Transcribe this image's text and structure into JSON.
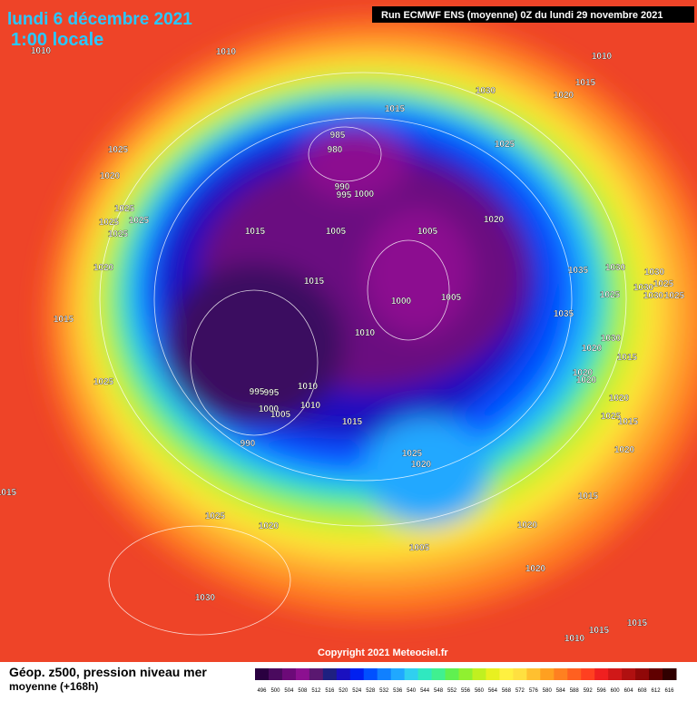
{
  "header": {
    "date": "lundi 6 décembre 2021",
    "time": "1:00 locale",
    "run": "Run ECMWF ENS (moyenne) 0Z du lundi 29 novembre 2021"
  },
  "copyright": "Copyright 2021 Meteociel.fr",
  "footer": {
    "title": "Géop. z500, pression niveau mer",
    "subtitle": "moyenne  (+168h)"
  },
  "isobar_labels": [
    "1010",
    "1010",
    "1010",
    "1015",
    "1030",
    "1020",
    "1015",
    "985",
    "980",
    "1025",
    "1025",
    "1020",
    "990",
    "995",
    "1000",
    "1025",
    "1025",
    "1025",
    "1025",
    "1020",
    "1015",
    "1005",
    "1005",
    "1020",
    "1035",
    "1030",
    "1030",
    "1015",
    "1025",
    "1030",
    "1030",
    "1025",
    "1025",
    "1000",
    "1005",
    "1035",
    "1015",
    "1010",
    "1030",
    "1020",
    "1015",
    "1020",
    "1020",
    "1025",
    "1010",
    "995",
    "995",
    "1020",
    "1010",
    "1000",
    "1005",
    "1015",
    "1025",
    "1015",
    "990",
    "1020",
    "1025",
    "1020",
    "1015",
    "1015",
    "1025",
    "1020",
    "1020",
    "1005",
    "1020",
    "1030",
    "1015",
    "1015",
    "1010"
  ],
  "colorbar": {
    "labels": [
      "496",
      "500",
      "504",
      "508",
      "512",
      "516",
      "520",
      "524",
      "528",
      "532",
      "536",
      "540",
      "544",
      "548",
      "552",
      "556",
      "560",
      "564",
      "568",
      "572",
      "576",
      "580",
      "584",
      "588",
      "592",
      "596",
      "600",
      "604",
      "608",
      "612",
      "616"
    ],
    "colors": [
      "#2a0040",
      "#4a0a5e",
      "#6c0a78",
      "#8c1090",
      "#5a1870",
      "#1e2080",
      "#1a10c0",
      "#0020f0",
      "#0050ff",
      "#1080ff",
      "#20a8ff",
      "#30d0f0",
      "#30e8c0",
      "#40f090",
      "#60f050",
      "#90f030",
      "#c0f020",
      "#e8f020",
      "#fff040",
      "#ffe040",
      "#ffc030",
      "#ffa020",
      "#ff8020",
      "#ff6020",
      "#ff4020",
      "#f02020",
      "#d01818",
      "#b01010",
      "#900808",
      "#600000",
      "#300000"
    ]
  }
}
